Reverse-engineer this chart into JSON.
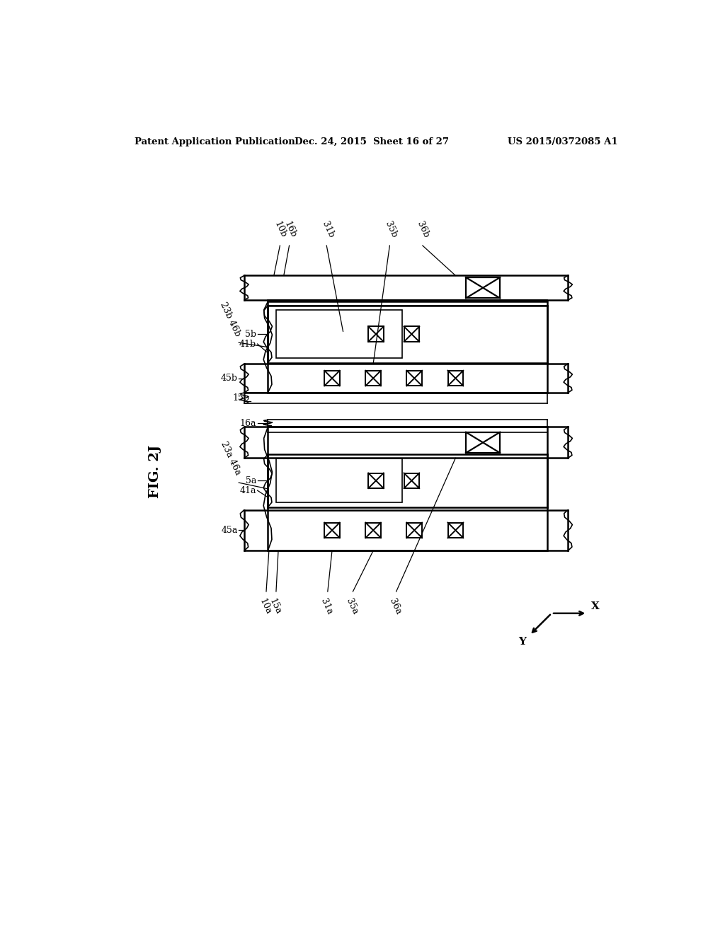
{
  "header_left": "Patent Application Publication",
  "header_center": "Dec. 24, 2015  Sheet 16 of 27",
  "header_right": "US 2015/0372085 A1",
  "bg_color": "#ffffff",
  "line_color": "#000000",
  "fig_label": "FIG. 2J"
}
